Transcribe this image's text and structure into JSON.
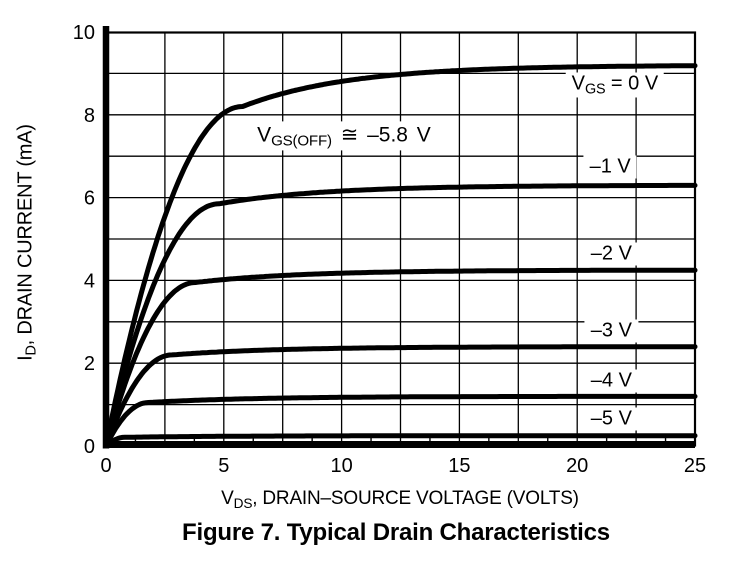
{
  "figure_title": "Figure 7. Typical Drain Characteristics",
  "x_axis_title": {
    "pre": "V",
    "sub": "DS",
    "post": ", DRAIN–SOURCE VOLTAGE (VOLTS)"
  },
  "y_axis_title": {
    "pre": "I",
    "sub": "D",
    "post": ", DRAIN CURRENT (mA)"
  },
  "annotation": {
    "pre": "V",
    "sub": "GS(OFF)",
    "post": " ≅ –5.8 V"
  },
  "chart_data": {
    "type": "line",
    "title": "Figure 7. Typical Drain Characteristics",
    "xlabel": "VDS, DRAIN–SOURCE VOLTAGE (VOLTS)",
    "ylabel": "ID, DRAIN CURRENT (mA)",
    "xlim": [
      0,
      25
    ],
    "ylim": [
      0,
      10
    ],
    "x_major_ticks": [
      0,
      5,
      10,
      15,
      20,
      25
    ],
    "x_grid_step": 2.5,
    "x_minor_tick_step": 1.25,
    "y_ticks": [
      0,
      2,
      4,
      6,
      8,
      10
    ],
    "y_grid_step": 1,
    "grid": true,
    "line_color": "#000000",
    "annotation_text": "VGS(OFF) ≅ –5.8 V",
    "annotation_pos": {
      "x": 10.1,
      "y": 7.5
    },
    "series": [
      {
        "name": "VGS = 0 V",
        "vgs": 0,
        "label": {
          "pre": "V",
          "sub": "GS",
          "post": " = 0 V"
        },
        "label_pos": {
          "x": 21.6,
          "y": 8.72
        },
        "knee_v": 5.8,
        "id_knee": 8.2,
        "id_sat": 9.2,
        "sat_tau": 4.5,
        "points": [
          [
            0,
            0
          ],
          [
            0.5,
            1.35
          ],
          [
            1,
            2.6
          ],
          [
            1.5,
            3.7
          ],
          [
            2,
            4.7
          ],
          [
            2.5,
            5.5
          ],
          [
            3,
            6.3
          ],
          [
            4,
            7.4
          ],
          [
            5,
            8.0
          ],
          [
            6,
            8.25
          ],
          [
            8,
            8.6
          ],
          [
            10,
            8.8
          ],
          [
            15,
            9.05
          ],
          [
            20,
            9.15
          ],
          [
            25,
            9.2
          ]
        ]
      },
      {
        "name": "VGS = -1 V",
        "vgs": -1,
        "label": {
          "pre": "",
          "sub": "",
          "post": "–1 V"
        },
        "label_pos": {
          "x": 21.4,
          "y": 6.74
        },
        "knee_v": 4.8,
        "id_knee": 5.85,
        "id_sat": 6.3,
        "sat_tau": 4.5,
        "points": [
          [
            0,
            0
          ],
          [
            0.5,
            1.15
          ],
          [
            1,
            2.2
          ],
          [
            1.5,
            3.1
          ],
          [
            2,
            3.85
          ],
          [
            2.5,
            4.5
          ],
          [
            3,
            5.05
          ],
          [
            4,
            5.7
          ],
          [
            5,
            5.85
          ],
          [
            6,
            5.95
          ],
          [
            8,
            6.1
          ],
          [
            10,
            6.15
          ],
          [
            15,
            6.25
          ],
          [
            20,
            6.28
          ],
          [
            25,
            6.3
          ]
        ]
      },
      {
        "name": "VGS = -2 V",
        "vgs": -2,
        "label": {
          "pre": "",
          "sub": "",
          "post": "–2 V"
        },
        "label_pos": {
          "x": 21.45,
          "y": 4.64
        },
        "knee_v": 3.8,
        "id_knee": 3.95,
        "id_sat": 4.25,
        "sat_tau": 4.5,
        "points": [
          [
            0,
            0
          ],
          [
            0.5,
            0.95
          ],
          [
            1,
            1.8
          ],
          [
            1.5,
            2.5
          ],
          [
            2,
            3.05
          ],
          [
            2.5,
            3.5
          ],
          [
            3,
            3.8
          ],
          [
            4,
            3.95
          ],
          [
            5,
            4.0
          ],
          [
            6,
            4.05
          ],
          [
            8,
            4.15
          ],
          [
            10,
            4.17
          ],
          [
            15,
            4.22
          ],
          [
            20,
            4.24
          ],
          [
            25,
            4.25
          ]
        ]
      },
      {
        "name": "VGS = -3 V",
        "vgs": -3,
        "label": {
          "pre": "",
          "sub": "",
          "post": "–3 V"
        },
        "label_pos": {
          "x": 21.45,
          "y": 2.78
        },
        "knee_v": 2.8,
        "id_knee": 2.2,
        "id_sat": 2.4,
        "sat_tau": 4.5,
        "points": [
          [
            0,
            0
          ],
          [
            0.5,
            0.72
          ],
          [
            1,
            1.3
          ],
          [
            1.5,
            1.73
          ],
          [
            2,
            2.0
          ],
          [
            2.5,
            2.17
          ],
          [
            3,
            2.21
          ],
          [
            4,
            2.25
          ],
          [
            5,
            2.28
          ],
          [
            6,
            2.3
          ],
          [
            8,
            2.33
          ],
          [
            10,
            2.36
          ],
          [
            15,
            2.38
          ],
          [
            20,
            2.39
          ],
          [
            25,
            2.4
          ]
        ]
      },
      {
        "name": "VGS = -4 V",
        "vgs": -4,
        "label": {
          "pre": "",
          "sub": "",
          "post": "–4 V"
        },
        "label_pos": {
          "x": 21.45,
          "y": 1.57
        },
        "knee_v": 1.8,
        "id_knee": 1.05,
        "id_sat": 1.2,
        "sat_tau": 4.5,
        "points": [
          [
            0,
            0
          ],
          [
            0.5,
            0.5
          ],
          [
            1,
            0.84
          ],
          [
            1.5,
            1.02
          ],
          [
            2,
            1.06
          ],
          [
            2.5,
            1.07
          ],
          [
            3,
            1.08
          ],
          [
            4,
            1.1
          ],
          [
            5,
            1.13
          ],
          [
            6,
            1.14
          ],
          [
            8,
            1.16
          ],
          [
            10,
            1.17
          ],
          [
            15,
            1.19
          ],
          [
            20,
            1.2
          ],
          [
            25,
            1.2
          ]
        ]
      },
      {
        "name": "VGS = -5 V",
        "vgs": -5,
        "label": {
          "pre": "",
          "sub": "",
          "post": "–5 V"
        },
        "label_pos": {
          "x": 21.45,
          "y": 0.65
        },
        "knee_v": 0.8,
        "id_knee": 0.21,
        "id_sat": 0.25,
        "sat_tau": 4.5,
        "points": [
          [
            0,
            0
          ],
          [
            0.5,
            0.18
          ],
          [
            1,
            0.21
          ],
          [
            1.5,
            0.22
          ],
          [
            2,
            0.22
          ],
          [
            2.5,
            0.22
          ],
          [
            3,
            0.23
          ],
          [
            4,
            0.23
          ],
          [
            5,
            0.23
          ],
          [
            6,
            0.24
          ],
          [
            8,
            0.24
          ],
          [
            10,
            0.24
          ],
          [
            15,
            0.25
          ],
          [
            20,
            0.25
          ],
          [
            25,
            0.25
          ]
        ]
      }
    ]
  }
}
